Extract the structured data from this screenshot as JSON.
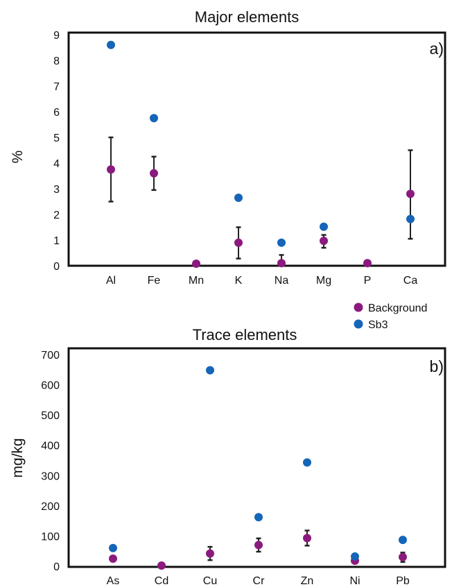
{
  "legend": {
    "background_color": "#8b1a7e",
    "sb3_color": "#1565b8",
    "items": [
      {
        "label": "Background",
        "color": "#8b1a7e"
      },
      {
        "label": "Sb3",
        "color": "#1565b8"
      }
    ]
  },
  "chart_data": [
    {
      "type": "scatter",
      "title": "Major elements",
      "panel_label": "a)",
      "ylabel": "%",
      "categories": [
        "Al",
        "Fe",
        "Mn",
        "K",
        "Na",
        "Mg",
        "P",
        "Ca"
      ],
      "yticks": [
        0,
        1,
        2,
        3,
        4,
        5,
        6,
        7,
        8,
        9
      ],
      "ylim": [
        0,
        9
      ],
      "grid": false,
      "series": [
        {
          "name": "Background",
          "color": "#8b1a7e",
          "values": [
            3.75,
            3.6,
            0.08,
            0.9,
            0.1,
            0.97,
            0.1,
            2.8
          ],
          "error_low": [
            2.5,
            2.95,
            null,
            0.28,
            0.0,
            0.7,
            null,
            1.05
          ],
          "error_high": [
            5.0,
            4.25,
            null,
            1.5,
            0.42,
            1.2,
            null,
            4.5
          ]
        },
        {
          "name": "Sb3",
          "color": "#1565b8",
          "values": [
            8.6,
            5.75,
            null,
            2.65,
            0.9,
            1.52,
            null,
            1.82
          ]
        }
      ]
    },
    {
      "type": "scatter",
      "title": "Trace elements",
      "panel_label": "b)",
      "ylabel": "mg/kg",
      "categories": [
        "As",
        "Cd",
        "Cu",
        "Cr",
        "Zn",
        "Ni",
        "Pb"
      ],
      "yticks": [
        0,
        100,
        200,
        300,
        400,
        500,
        600,
        700
      ],
      "ylim": [
        0,
        700
      ],
      "grid": false,
      "series": [
        {
          "name": "Background",
          "color": "#8b1a7e",
          "values": [
            25,
            2,
            42,
            70,
            93,
            18,
            30
          ],
          "error_low": [
            null,
            null,
            20,
            48,
            68,
            null,
            14
          ],
          "error_high": [
            null,
            null,
            64,
            92,
            118,
            null,
            45
          ]
        },
        {
          "name": "Sb3",
          "color": "#1565b8",
          "values": [
            60,
            null,
            648,
            162,
            343,
            32,
            87
          ]
        }
      ]
    }
  ]
}
